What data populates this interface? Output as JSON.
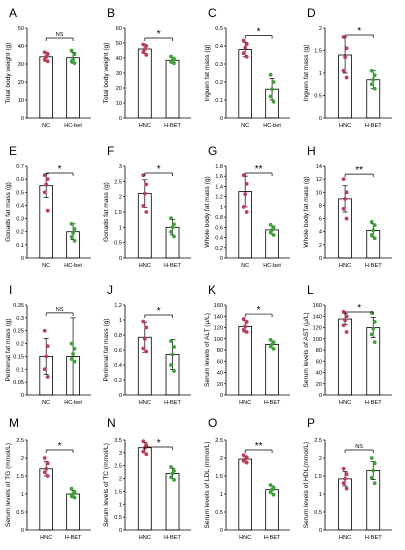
{
  "colors": {
    "group1": "#c23b57",
    "group2": "#3ca336",
    "bar": "#ffffff",
    "axis": "#000000"
  },
  "chart_data": [
    {
      "letter": "A",
      "type": "bar",
      "ylabel": "Total body weight (g)",
      "categories": [
        "NC",
        "HC-bet"
      ],
      "ylim": [
        0,
        50
      ],
      "yticks": [
        "0",
        "10",
        "20",
        "30",
        "40",
        "50"
      ],
      "series": [
        {
          "values": [
            34,
            33.5
          ],
          "errors": [
            2.5,
            3
          ]
        }
      ],
      "points": [
        [
          36.5,
          35.5,
          34,
          32.5,
          31.5
        ],
        [
          37.5,
          35.5,
          32.5,
          31.5,
          30.5
        ]
      ],
      "sig": "NS"
    },
    {
      "letter": "B",
      "type": "bar",
      "ylabel": "Total body weight (g)",
      "categories": [
        "HNC",
        "H-BET"
      ],
      "ylim": [
        0,
        60
      ],
      "yticks": [
        "0",
        "10",
        "20",
        "30",
        "40",
        "50",
        "60"
      ],
      "series": [
        {
          "values": [
            46,
            38.5
          ],
          "errors": [
            3,
            2
          ]
        }
      ],
      "points": [
        [
          49,
          48,
          46,
          44,
          42
        ],
        [
          41,
          39.5,
          38.5,
          37.5,
          36.5
        ]
      ],
      "sig": "*"
    },
    {
      "letter": "C",
      "type": "bar",
      "ylabel": "Inguen fat mass (g)",
      "categories": [
        "NC",
        "HC-bet"
      ],
      "ylim": [
        0,
        0.5
      ],
      "yticks": [
        "0",
        "0.1",
        "0.2",
        "0.3",
        "0.4",
        "0.5"
      ],
      "series": [
        {
          "values": [
            0.38,
            0.16
          ],
          "errors": [
            0.04,
            0.06
          ]
        }
      ],
      "points": [
        [
          0.43,
          0.41,
          0.39,
          0.36,
          0.34
        ],
        [
          0.24,
          0.2,
          0.16,
          0.12,
          0.09
        ]
      ],
      "sig": "*"
    },
    {
      "letter": "D",
      "type": "bar",
      "ylabel": "Inguen fat mass (g)",
      "categories": [
        "HNC",
        "H-BET"
      ],
      "ylim": [
        0,
        2
      ],
      "yticks": [
        "0",
        "0.5",
        "1",
        "1.5",
        "2"
      ],
      "series": [
        {
          "values": [
            1.4,
            0.85
          ],
          "errors": [
            0.4,
            0.2
          ]
        }
      ],
      "points": [
        [
          1.8,
          1.55,
          1.35,
          1.05,
          0.9
        ],
        [
          1.05,
          0.95,
          0.85,
          0.75,
          0.65
        ]
      ],
      "sig": "*"
    },
    {
      "letter": "E",
      "type": "bar",
      "ylabel": "Gonads fat mass (g)",
      "categories": [
        "NC",
        "HC-bet"
      ],
      "ylim": [
        0,
        0.7
      ],
      "yticks": [
        "0",
        "0.1",
        "0.2",
        "0.3",
        "0.4",
        "0.5",
        "0.6",
        "0.7"
      ],
      "series": [
        {
          "values": [
            0.55,
            0.2
          ],
          "errors": [
            0.09,
            0.06
          ]
        }
      ],
      "points": [
        [
          0.63,
          0.6,
          0.56,
          0.5,
          0.36
        ],
        [
          0.26,
          0.22,
          0.19,
          0.16,
          0.13
        ]
      ],
      "sig": "*"
    },
    {
      "letter": "F",
      "type": "bar",
      "ylabel": "Gonads fat mass (g)",
      "categories": [
        "HNC",
        "H-BET"
      ],
      "ylim": [
        0,
        3
      ],
      "yticks": [
        "0",
        "0.5",
        "1",
        "1.5",
        "2",
        "2.5",
        "3"
      ],
      "series": [
        {
          "values": [
            2.1,
            1.0
          ],
          "errors": [
            0.45,
            0.25
          ]
        }
      ],
      "points": [
        [
          2.7,
          2.4,
          2.1,
          1.7,
          1.5
        ],
        [
          1.3,
          1.1,
          1.0,
          0.85,
          0.7
        ]
      ],
      "sig": "*"
    },
    {
      "letter": "G",
      "type": "bar",
      "ylabel": "Whole body fat mass (g)",
      "categories": [
        "NC",
        "HC-bet"
      ],
      "ylim": [
        0,
        1.8
      ],
      "yticks": [
        "0",
        "0.2",
        "0.4",
        "0.6",
        "0.8",
        "1",
        "1.2",
        "1.4",
        "1.6",
        "1.8"
      ],
      "series": [
        {
          "values": [
            1.3,
            0.55
          ],
          "errors": [
            0.3,
            0.08
          ]
        }
      ],
      "points": [
        [
          1.62,
          1.45,
          1.25,
          1.0,
          0.9
        ],
        [
          0.65,
          0.6,
          0.55,
          0.5,
          0.45
        ]
      ],
      "sig": "**"
    },
    {
      "letter": "H",
      "type": "bar",
      "ylabel": "Whole body fat mass (g)",
      "categories": [
        "HNC",
        "H-BET"
      ],
      "ylim": [
        0,
        14
      ],
      "yticks": [
        "0",
        "2",
        "4",
        "6",
        "8",
        "10",
        "12",
        "14"
      ],
      "series": [
        {
          "values": [
            9,
            4.2
          ],
          "errors": [
            2,
            1
          ]
        }
      ],
      "points": [
        [
          12,
          10,
          9,
          7.5,
          6
        ],
        [
          5.5,
          5,
          4.2,
          3.5,
          3
        ]
      ],
      "sig": "**"
    },
    {
      "letter": "I",
      "type": "bar",
      "ylabel": "Perirenal fat mass (g)",
      "categories": [
        "NC",
        "HC-bet"
      ],
      "ylim": [
        0,
        0.35
      ],
      "yticks": [
        "0",
        "0.05",
        "0.1",
        "0.15",
        "0.2",
        "0.25",
        "0.3",
        "0.35"
      ],
      "series": [
        {
          "values": [
            0.15,
            0.15
          ],
          "errors": [
            0.07,
            0.15
          ]
        }
      ],
      "points": [
        [
          0.25,
          0.19,
          0.15,
          0.1,
          0.07
        ],
        [
          0.2,
          0.18,
          0.16,
          0.14,
          0.13
        ]
      ],
      "sig": "NS"
    },
    {
      "letter": "J",
      "type": "bar",
      "ylabel": "Perirenal fat mass (g)",
      "categories": [
        "HNC",
        "H-BET"
      ],
      "ylim": [
        0,
        1.2
      ],
      "yticks": [
        "0",
        "0.2",
        "0.4",
        "0.6",
        "0.8",
        "1",
        "1.2"
      ],
      "series": [
        {
          "values": [
            0.77,
            0.54
          ],
          "errors": [
            0.2,
            0.2
          ]
        }
      ],
      "points": [
        [
          0.98,
          0.9,
          0.75,
          0.62,
          0.58
        ],
        [
          0.72,
          0.64,
          0.54,
          0.4,
          0.32
        ]
      ],
      "sig": "*"
    },
    {
      "letter": "K",
      "type": "bar",
      "ylabel": "Serum levels of ALT (μ/L)",
      "categories": [
        "HNC",
        "H-BET"
      ],
      "ylim": [
        0,
        160
      ],
      "yticks": [
        "0",
        "20",
        "40",
        "60",
        "80",
        "100",
        "120",
        "140",
        "160"
      ],
      "series": [
        {
          "values": [
            122,
            90
          ],
          "errors": [
            10,
            6
          ]
        }
      ],
      "points": [
        [
          135,
          130,
          122,
          116,
          112
        ],
        [
          98,
          94,
          90,
          86,
          82
        ]
      ],
      "sig": "*"
    },
    {
      "letter": "L",
      "type": "bar",
      "ylabel": "Serum levels of AST (μ/L)",
      "categories": [
        "HNC",
        "H-BET"
      ],
      "ylim": [
        0,
        160
      ],
      "yticks": [
        "0",
        "20",
        "40",
        "60",
        "80",
        "100",
        "120",
        "140",
        "160"
      ],
      "series": [
        {
          "values": [
            135,
            120
          ],
          "errors": [
            10,
            18
          ]
        }
      ],
      "points": [
        [
          148,
          140,
          133,
          124,
          112
        ],
        [
          146,
          130,
          118,
          108,
          94
        ]
      ],
      "sig": "*"
    },
    {
      "letter": "M",
      "type": "bar",
      "ylabel": "Serum levels of TG (mmol/L)",
      "categories": [
        "HNC",
        "H-BET"
      ],
      "ylim": [
        0,
        2.5
      ],
      "yticks": [
        "0",
        "0.5",
        "1",
        "1.5",
        "2",
        "2.5"
      ],
      "series": [
        {
          "values": [
            1.7,
            1.0
          ],
          "errors": [
            0.2,
            0.1
          ]
        }
      ],
      "points": [
        [
          2.0,
          1.85,
          1.7,
          1.6,
          1.5
        ],
        [
          1.15,
          1.05,
          1.0,
          0.95,
          0.9
        ]
      ],
      "sig": "*"
    },
    {
      "letter": "N",
      "type": "bar",
      "ylabel": "Serum levels of TC (mmol/L)",
      "categories": [
        "HNC",
        "H-BET"
      ],
      "ylim": [
        0,
        3.5
      ],
      "yticks": [
        "0",
        "0.5",
        "1",
        "1.5",
        "2",
        "2.5",
        "3",
        "3.5"
      ],
      "series": [
        {
          "values": [
            3.2,
            2.2
          ],
          "errors": [
            0.2,
            0.2
          ]
        }
      ],
      "points": [
        [
          3.45,
          3.3,
          3.2,
          3.05,
          2.95
        ],
        [
          2.45,
          2.3,
          2.2,
          2.05,
          1.95
        ]
      ],
      "sig": "*"
    },
    {
      "letter": "O",
      "type": "bar",
      "ylabel": "Serum levels of LDL (mmol/L)",
      "categories": [
        "HNC",
        "H-BET"
      ],
      "ylim": [
        0,
        2.5
      ],
      "yticks": [
        "0",
        "0.5",
        "1",
        "1.5",
        "2",
        "2.5"
      ],
      "series": [
        {
          "values": [
            1.97,
            1.12
          ],
          "errors": [
            0.08,
            0.1
          ]
        }
      ],
      "points": [
        [
          2.08,
          2.02,
          1.97,
          1.92,
          1.87
        ],
        [
          1.25,
          1.18,
          1.12,
          1.05,
          0.98
        ]
      ],
      "sig": "**"
    },
    {
      "letter": "P",
      "type": "bar",
      "ylabel": "Serum levels of HDL(mmol/L)",
      "categories": [
        "HNC",
        "H-BET"
      ],
      "ylim": [
        0,
        2.5
      ],
      "yticks": [
        "0",
        "0.5",
        "1",
        "1.5",
        "2",
        "2.5"
      ],
      "series": [
        {
          "values": [
            1.42,
            1.65
          ],
          "errors": [
            0.2,
            0.25
          ]
        }
      ],
      "points": [
        [
          1.7,
          1.55,
          1.42,
          1.3,
          1.15
        ],
        [
          2.0,
          1.85,
          1.65,
          1.45,
          1.3
        ]
      ],
      "sig": "NS"
    }
  ]
}
